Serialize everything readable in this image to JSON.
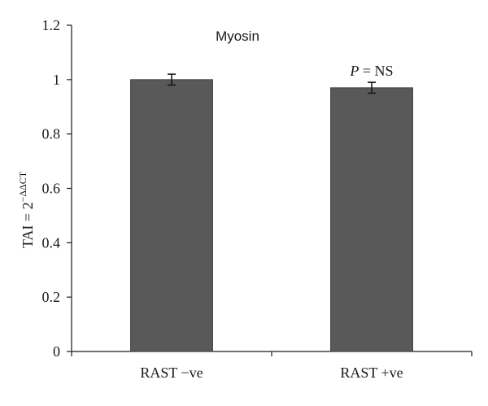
{
  "chart_data": {
    "type": "bar",
    "title": "Myosin",
    "categories": [
      "RAST −ve",
      "RAST +ve"
    ],
    "values": [
      1.0,
      0.97
    ],
    "errors": [
      0.02,
      0.02
    ],
    "ylabel": "TAI = 2",
    "ylabel_exponent": "−ΔΔCT",
    "ylim": [
      0,
      1.2
    ],
    "yticks": [
      0,
      0.2,
      0.4,
      0.6,
      0.8,
      1,
      1.2
    ],
    "ytick_labels": [
      "0",
      "0.2",
      "0.4",
      "0.6",
      "0.8",
      "1",
      "1.2"
    ],
    "annotation": {
      "italic": "P",
      "text": " = NS",
      "category_index": 1
    },
    "grid": false,
    "bar_color": "#595959"
  }
}
